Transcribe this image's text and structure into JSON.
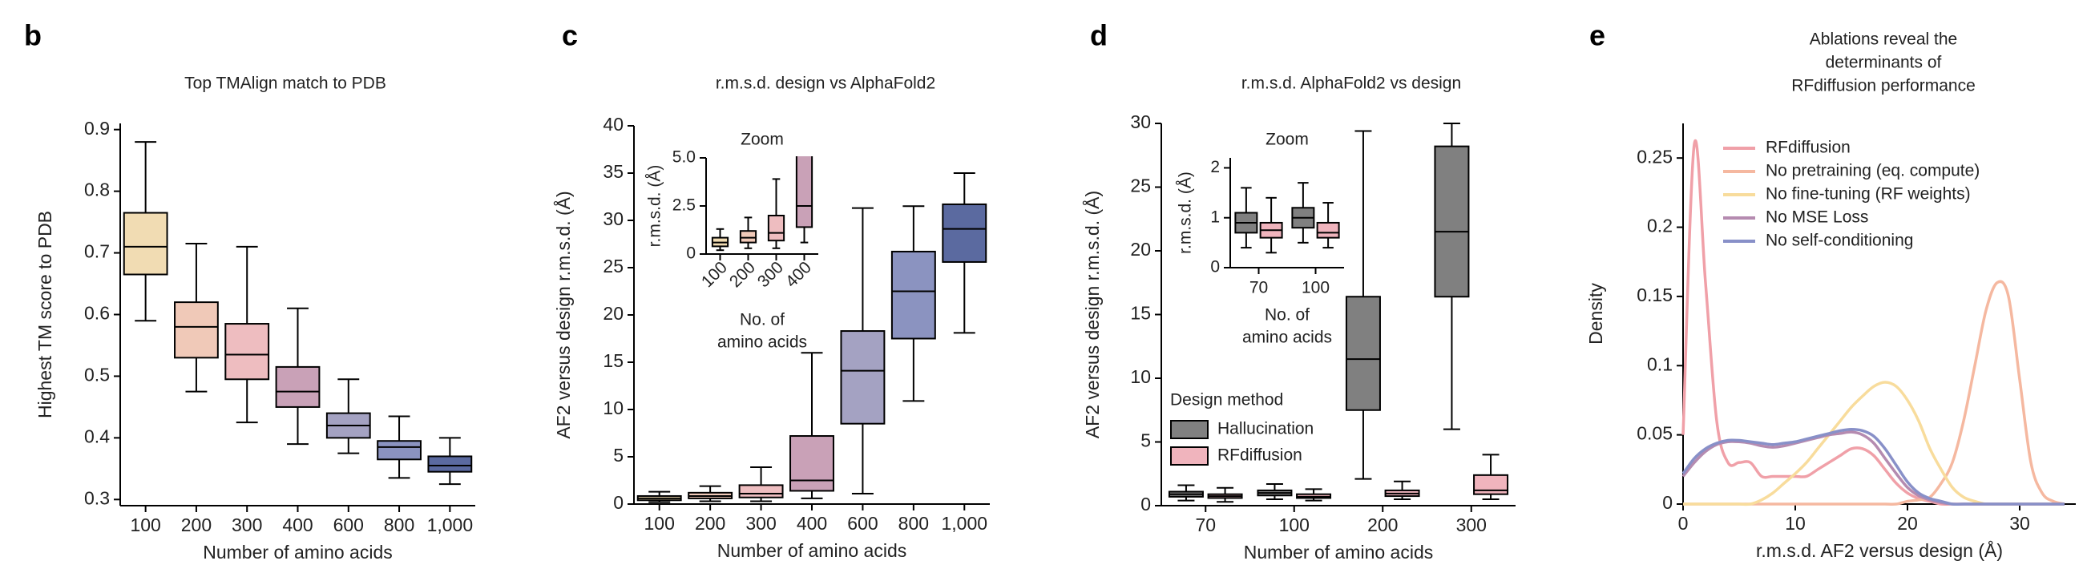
{
  "chart_data": [
    {
      "type": "box",
      "label": "b",
      "title": "Top TMAlign match to PDB",
      "xlabel": "Number of amino acids",
      "ylabel": "Highest TM score to PDB",
      "categories": [
        "100",
        "200",
        "300",
        "400",
        "600",
        "800",
        "1,000"
      ],
      "series": [
        {
          "colors": [
            "#f1dcb3",
            "#f0c9b8",
            "#eebdc0",
            "#c9a1b7",
            "#a4a2c2",
            "#8b93c0",
            "#5b6aa0"
          ],
          "low": [
            0.59,
            0.475,
            0.425,
            0.39,
            0.375,
            0.335,
            0.325
          ],
          "q1": [
            0.665,
            0.53,
            0.495,
            0.45,
            0.4,
            0.365,
            0.345
          ],
          "median": [
            0.71,
            0.58,
            0.535,
            0.475,
            0.42,
            0.385,
            0.355
          ],
          "q3": [
            0.765,
            0.62,
            0.585,
            0.515,
            0.44,
            0.395,
            0.37
          ],
          "high": [
            0.88,
            0.715,
            0.71,
            0.61,
            0.495,
            0.435,
            0.4
          ]
        }
      ],
      "ylim": [
        0.29,
        0.91
      ],
      "yticks": [
        0.3,
        0.4,
        0.5,
        0.6,
        0.7,
        0.8,
        0.9
      ]
    },
    {
      "type": "box",
      "label": "c",
      "title": "r.m.s.d. design vs AlphaFold2",
      "xlabel": "Number of amino acids",
      "ylabel": "AF2 versus design r.m.s.d. (Å)",
      "categories": [
        "100",
        "200",
        "300",
        "400",
        "600",
        "800",
        "1,000"
      ],
      "series": [
        {
          "colors": [
            "#f1dcb3",
            "#f0c9b8",
            "#eebdc0",
            "#c9a1b7",
            "#a4a2c2",
            "#8b93c0",
            "#5b6aa0"
          ],
          "low": [
            0.2,
            0.3,
            0.3,
            0.6,
            1.1,
            10.9,
            18.1
          ],
          "q1": [
            0.4,
            0.6,
            0.7,
            1.4,
            8.5,
            17.5,
            25.6
          ],
          "median": [
            0.6,
            0.85,
            1.1,
            2.5,
            14.1,
            22.5,
            29.1
          ],
          "q3": [
            0.85,
            1.2,
            2.0,
            7.2,
            18.3,
            26.7,
            31.7
          ],
          "high": [
            1.3,
            1.9,
            3.9,
            16,
            31.3,
            31.5,
            35.0
          ]
        }
      ],
      "ylim": [
        0,
        40
      ],
      "yticks": [
        0,
        5,
        10,
        15,
        20,
        25,
        30,
        35,
        40
      ],
      "inset": {
        "title": "Zoom",
        "ylabel": "r.m.s.d. (Å)",
        "xlabel": [
          "No. of",
          "amino acids"
        ],
        "categories": [
          "100",
          "200",
          "300",
          "400"
        ],
        "ylim": [
          0,
          5
        ],
        "yticks": [
          0,
          2.5,
          {
            "value": 5,
            "label": "5.0"
          }
        ]
      }
    },
    {
      "type": "box",
      "label": "d",
      "title": "r.m.s.d. AlphaFold2 vs design",
      "xlabel": "Number of amino acids",
      "ylabel": "AF2 versus design r.m.s.d. (Å)",
      "categories": [
        "70",
        "100",
        "200",
        "300"
      ],
      "legend_title": "Design method",
      "series": [
        {
          "name": "Hallucination",
          "color": "#808080",
          "low": [
            0.4,
            0.5,
            2.1,
            6.0
          ],
          "q1": [
            0.7,
            0.8,
            7.5,
            16.4
          ],
          "median": [
            0.9,
            1.0,
            11.5,
            21.5
          ],
          "q3": [
            1.1,
            1.2,
            16.4,
            28.2
          ],
          "high": [
            1.6,
            1.7,
            29.4,
            30
          ]
        },
        {
          "name": "RFdiffusion",
          "color": "#f0b4bd",
          "low": [
            0.3,
            0.4,
            0.5,
            0.5
          ],
          "q1": [
            0.6,
            0.6,
            0.75,
            0.9
          ],
          "median": [
            0.75,
            0.7,
            0.95,
            1.2
          ],
          "q3": [
            0.9,
            0.9,
            1.2,
            2.4
          ],
          "high": [
            1.4,
            1.3,
            1.9,
            4.0
          ]
        }
      ],
      "ylim": [
        0,
        30
      ],
      "yticks": [
        0,
        5,
        10,
        15,
        20,
        25,
        30
      ],
      "inset": {
        "title": "Zoom",
        "ylabel": "r.m.s.d. (Å)",
        "xlabel": [
          "No. of",
          "amino acids"
        ],
        "categories": [
          "70",
          "100"
        ],
        "ylim": [
          0,
          2.2
        ],
        "yticks": [
          0,
          1,
          2
        ]
      }
    },
    {
      "type": "line",
      "label": "e",
      "title": [
        "Ablations reveal the",
        "determinants of",
        "RFdiffusion performance"
      ],
      "xlabel": "r.m.s.d. AF2 versus design (Å)",
      "ylabel": "Density",
      "x": [
        0,
        1,
        2,
        3,
        4,
        5,
        6,
        7,
        8,
        9,
        10,
        11,
        12,
        13,
        14,
        15,
        16,
        17,
        18,
        19,
        20,
        21,
        22,
        23,
        24,
        25,
        26,
        27,
        28,
        29,
        30,
        31,
        32,
        33,
        34
      ],
      "series": [
        {
          "name": "RFdiffusion",
          "color": "#f0a0a8",
          "values": [
            0.05,
            0.26,
            0.16,
            0.06,
            0.03,
            0.03,
            0.03,
            0.02,
            0.02,
            0.02,
            0.02,
            0.02,
            0.025,
            0.03,
            0.035,
            0.04,
            0.04,
            0.035,
            0.025,
            0.015,
            0.008,
            0.004,
            0.002,
            0,
            0,
            0,
            0,
            0,
            0,
            0,
            0,
            0,
            0,
            0,
            0
          ]
        },
        {
          "name": "No pretraining (eq. compute)",
          "color": "#f5b8a0",
          "values": [
            0,
            0,
            0,
            0,
            0,
            0,
            0,
            0,
            0,
            0,
            0,
            0,
            0,
            0,
            0,
            0,
            0,
            0,
            0,
            0,
            0.002,
            0.003,
            0.005,
            0.015,
            0.03,
            0.06,
            0.1,
            0.14,
            0.16,
            0.15,
            0.09,
            0.03,
            0.008,
            0.002,
            0
          ]
        },
        {
          "name": "No fine-tuning (RF weights)",
          "color": "#f8dc9c",
          "values": [
            0,
            0,
            0,
            0,
            0,
            0,
            0,
            0.003,
            0.008,
            0.015,
            0.022,
            0.03,
            0.04,
            0.05,
            0.06,
            0.07,
            0.078,
            0.085,
            0.088,
            0.085,
            0.075,
            0.06,
            0.04,
            0.025,
            0.012,
            0.005,
            0.002,
            0,
            0,
            0,
            0,
            0,
            0,
            0,
            0
          ]
        },
        {
          "name": "No MSE Loss",
          "color": "#b58bb0",
          "values": [
            0.02,
            0.03,
            0.038,
            0.043,
            0.045,
            0.045,
            0.044,
            0.042,
            0.041,
            0.042,
            0.044,
            0.046,
            0.048,
            0.05,
            0.051,
            0.052,
            0.05,
            0.044,
            0.033,
            0.022,
            0.012,
            0.006,
            0.003,
            0.001,
            0,
            0,
            0,
            0,
            0,
            0,
            0,
            0,
            0,
            0,
            0
          ]
        },
        {
          "name": "No self-conditioning",
          "color": "#8890c8",
          "values": [
            0.022,
            0.033,
            0.04,
            0.044,
            0.046,
            0.046,
            0.045,
            0.044,
            0.043,
            0.044,
            0.045,
            0.047,
            0.049,
            0.051,
            0.053,
            0.054,
            0.053,
            0.049,
            0.04,
            0.028,
            0.016,
            0.008,
            0.004,
            0.002,
            0,
            0,
            0,
            0,
            0,
            0,
            0,
            0,
            0,
            0,
            0
          ]
        }
      ],
      "xlim": [
        0,
        35
      ],
      "xticks": [
        0,
        10,
        20,
        30
      ],
      "ylim": [
        0,
        0.275
      ],
      "yticks": [
        0,
        0.05,
        0.1,
        0.15,
        0.2,
        0.25
      ]
    }
  ]
}
